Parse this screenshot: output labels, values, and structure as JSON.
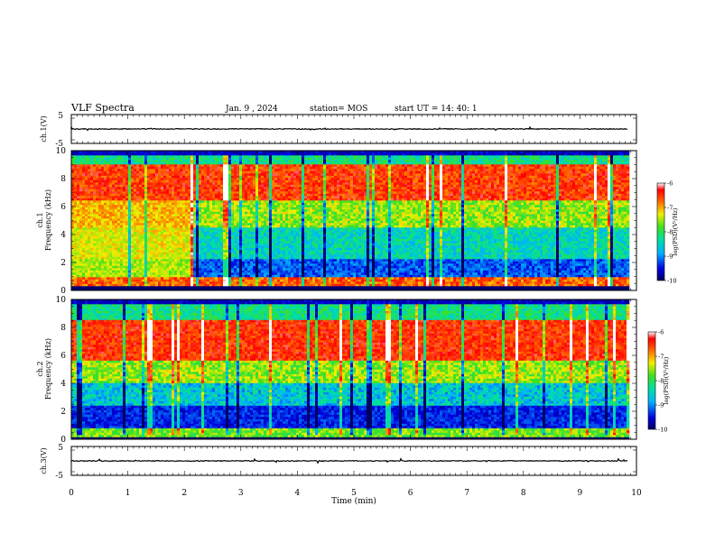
{
  "header": {
    "title": "VLF Spectra",
    "date": "Jan. 9 , 2024",
    "station": "station= MOS",
    "start": "start UT =  14: 40: 1"
  },
  "chart_data": [
    {
      "type": "line",
      "panel": "ch1-waveform",
      "ylabel": "ch.1(V)",
      "ylim": [
        -5,
        5
      ],
      "yticks": [
        "5",
        "-5"
      ],
      "xlim": [
        0,
        10
      ],
      "baseline": 0
    },
    {
      "type": "heatmap",
      "panel": "ch1-spectrogram",
      "ylabel_channel": "ch.1",
      "ylabel": "Frequency (kHz)",
      "ylim": [
        0,
        10
      ],
      "yticks": [
        "0",
        "2",
        "4",
        "6",
        "8",
        "10"
      ],
      "xlim": [
        0,
        10
      ],
      "data_end_min": 9.85,
      "colorbar": {
        "label": "log(PSD)(V²/Hz)",
        "range": [
          -10,
          -6
        ],
        "ticks": [
          "-6",
          "-7",
          "-8",
          "-9",
          "-10"
        ]
      }
    },
    {
      "type": "heatmap",
      "panel": "ch2-spectrogram",
      "ylabel_channel": "ch.2",
      "ylabel": "Frequency (kHz)",
      "ylim": [
        0,
        10
      ],
      "yticks": [
        "0",
        "2",
        "4",
        "6",
        "8",
        "10"
      ],
      "xlim": [
        0,
        10
      ],
      "data_end_min": 9.85,
      "colorbar": {
        "label": "log(PSD)(V²/Hz)",
        "range": [
          -10,
          -6
        ],
        "ticks": [
          "-6",
          "-7",
          "-8",
          "-9",
          "-10"
        ]
      }
    },
    {
      "type": "line",
      "panel": "ch3-waveform",
      "ylabel": "ch.3(V)",
      "ylim": [
        -5,
        5
      ],
      "yticks": [
        "5",
        "-5"
      ],
      "xlim": [
        0,
        10
      ],
      "baseline": 0,
      "xlabel": "Time (min)",
      "xticks": [
        "0",
        "1",
        "2",
        "3",
        "4",
        "5",
        "6",
        "7",
        "8",
        "9",
        "10"
      ]
    }
  ]
}
